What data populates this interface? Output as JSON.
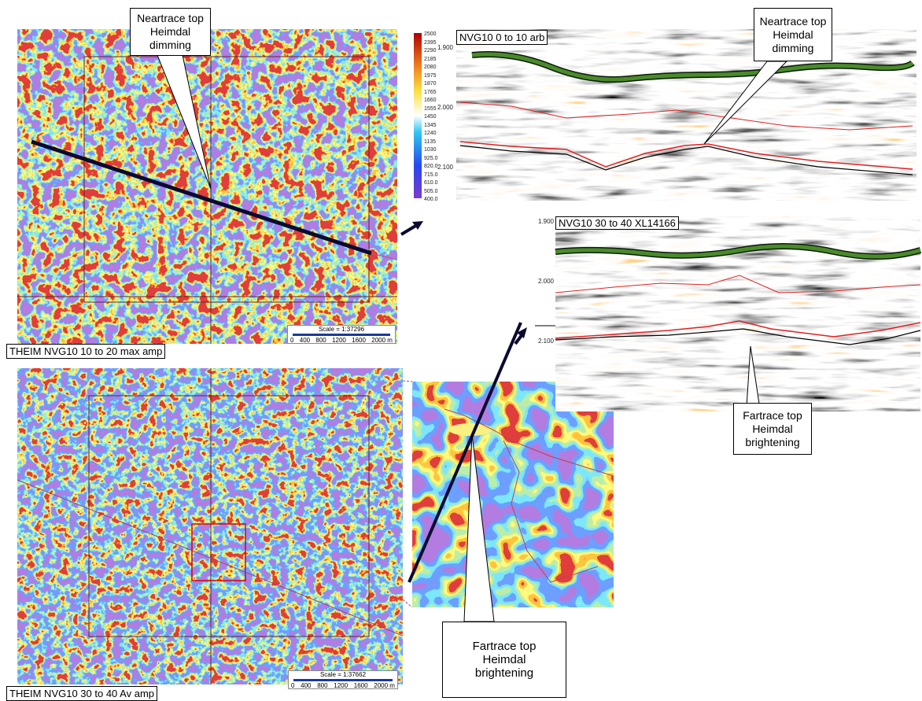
{
  "top_map": {
    "label": "THEIM NVG10 10 to 20 max amp",
    "scale": "Scale = 1:37296",
    "scale_ticks": [
      "0",
      "400",
      "800",
      "1200",
      "1600",
      "2000 m"
    ]
  },
  "bottom_map": {
    "label": "THEIM NVG10 30 to 40 Av amp",
    "scale": "Scale = 1:37662",
    "scale_ticks": [
      "0",
      "400",
      "800",
      "1200",
      "1600",
      "2000 m"
    ]
  },
  "colorbar": {
    "labels": [
      "2500",
      "2395",
      "2290",
      "2185",
      "2080",
      "1975",
      "1870",
      "1765",
      "1660",
      "1555",
      "1450",
      "1345",
      "1240",
      "1135",
      "1030",
      "925.0",
      "820.0",
      "715.0",
      "610.0",
      "505.0",
      "400.0"
    ]
  },
  "top_section": {
    "label": "NVG10 0 to 10 arb",
    "axis": [
      "1.900",
      "2.000",
      "2.100"
    ]
  },
  "bottom_section": {
    "label": "NVG10 30 to 40 XL14166",
    "axis": [
      "1.900",
      "2.000",
      "2.100"
    ]
  },
  "callouts": {
    "near_map": "Neartrace top Heimdal dimming",
    "near_section": "Neartrace top Heimdal dimming",
    "far_section": "Fartrace top Heimdal brightening",
    "far_zoom": "Fartrace top Heimdal brightening"
  }
}
